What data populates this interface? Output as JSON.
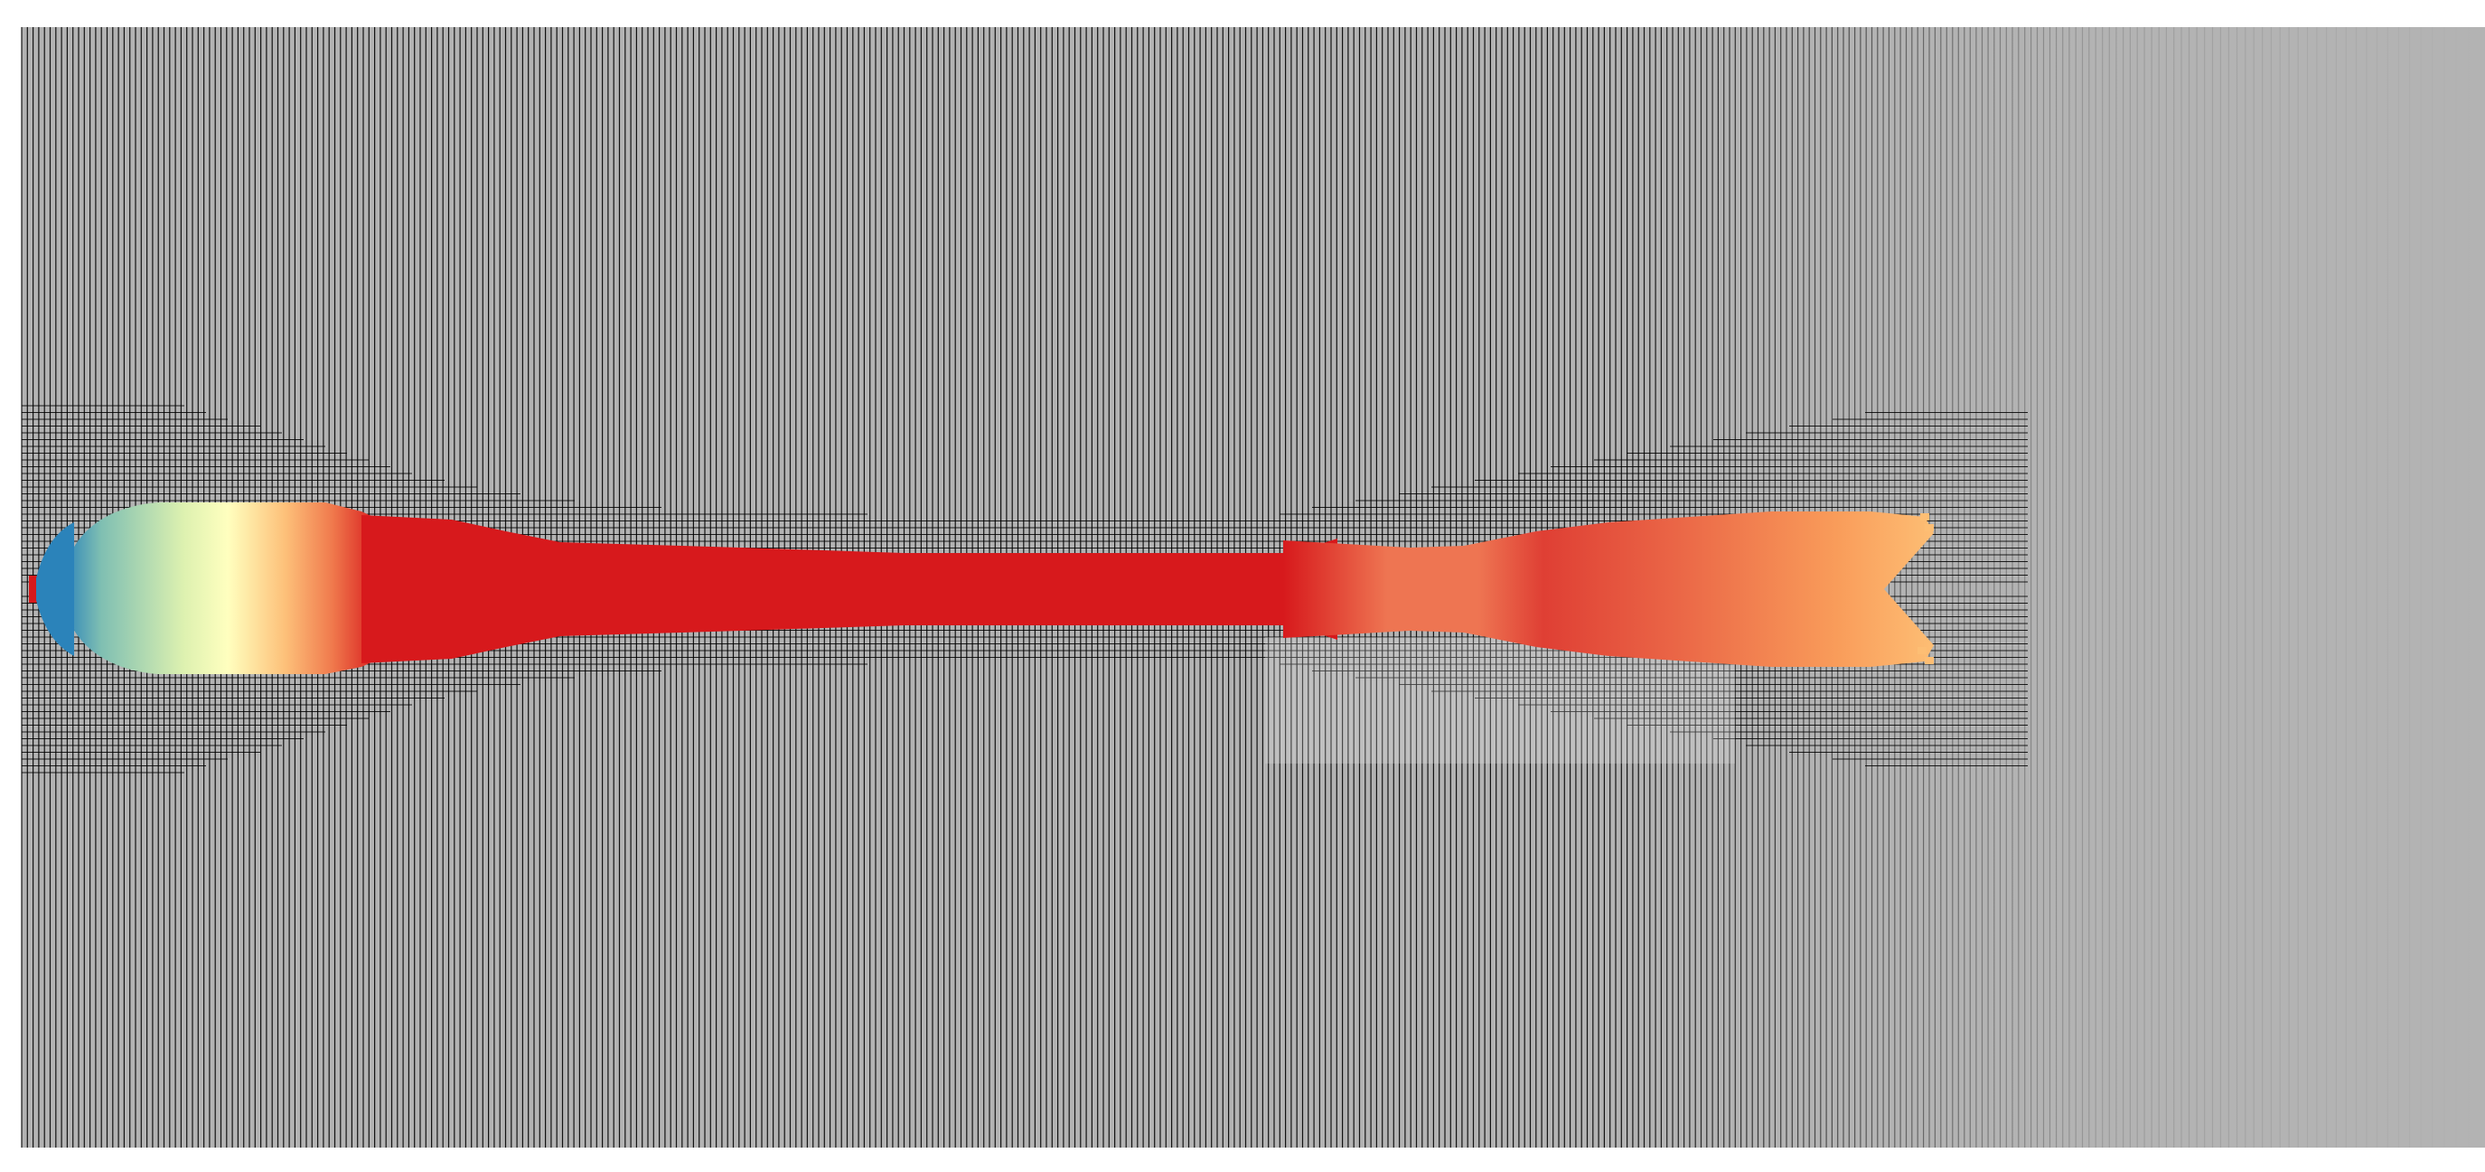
{
  "figure": {
    "kind": "simulation-mesh-field",
    "background_color": "#ffffff",
    "mesh_background_color": "#b3b3b3",
    "mesh_line_color": "#000000",
    "mesh_line_light_color": "#e6e6e6",
    "colormap_name": "Spectral",
    "colormap_stops": [
      "#2b83ba",
      "#abdda4",
      "#ffffbf",
      "#fdae61",
      "#d7191c"
    ],
    "jet_core_color": "#d7191c",
    "show_axes": false,
    "show_legend": false
  }
}
